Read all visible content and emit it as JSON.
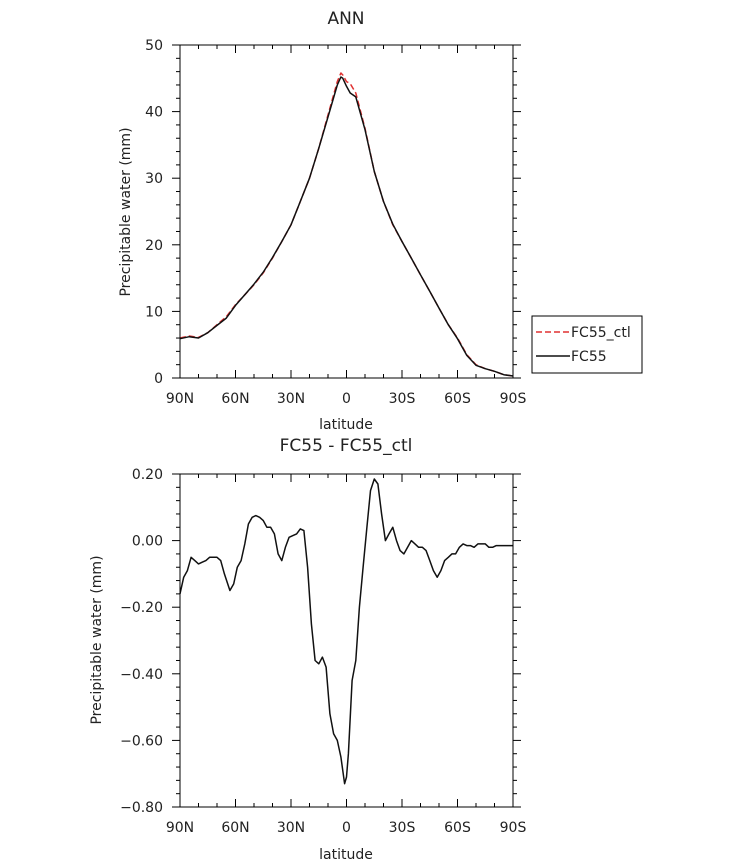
{
  "chart_data": [
    {
      "type": "line",
      "title": "ANN",
      "xlabel": "latitude",
      "ylabel": "Precipitable water  (mm)",
      "xlim": [
        90,
        -90
      ],
      "ylim": [
        0,
        50
      ],
      "x_ticks": [
        90,
        60,
        30,
        0,
        -30,
        -60,
        -90
      ],
      "x_tick_labels": [
        "90N",
        "60N",
        "30N",
        "0",
        "30S",
        "60S",
        "90S"
      ],
      "y_ticks": [
        0,
        10,
        20,
        30,
        40,
        50
      ],
      "y_tick_labels": [
        "0",
        "10",
        "20",
        "30",
        "40",
        "50"
      ],
      "legend": {
        "position": "right",
        "entries": [
          "FC55_ctl",
          "FC55"
        ]
      },
      "series": [
        {
          "name": "FC55_ctl",
          "color": "#e03030",
          "dash": true,
          "x": [
            90,
            85,
            80,
            75,
            70,
            65,
            60,
            55,
            50,
            45,
            40,
            35,
            30,
            25,
            20,
            15,
            10,
            5,
            3,
            2,
            0,
            -2,
            -5,
            -10,
            -15,
            -20,
            -25,
            -30,
            -35,
            -40,
            -45,
            -50,
            -55,
            -60,
            -65,
            -70,
            -75,
            -80,
            -85,
            -90
          ],
          "y": [
            6.0,
            6.3,
            6.1,
            6.8,
            8.0,
            9.2,
            11.0,
            12.5,
            14.0,
            15.8,
            18.0,
            20.5,
            23.0,
            26.5,
            30.0,
            34.5,
            39.5,
            44.5,
            45.8,
            45.5,
            44.5,
            44.2,
            42.8,
            37.5,
            31.0,
            26.5,
            23.0,
            20.5,
            18.0,
            15.5,
            13.0,
            10.5,
            8.0,
            6.0,
            3.5,
            2.0,
            1.4,
            1.0,
            0.5,
            0.3
          ]
        },
        {
          "name": "FC55",
          "color": "#111111",
          "dash": false,
          "x": [
            90,
            85,
            80,
            75,
            70,
            65,
            60,
            55,
            50,
            45,
            40,
            35,
            30,
            25,
            20,
            15,
            10,
            5,
            3,
            2,
            0,
            -2,
            -5,
            -10,
            -15,
            -20,
            -25,
            -30,
            -35,
            -40,
            -45,
            -50,
            -55,
            -60,
            -65,
            -70,
            -75,
            -80,
            -85,
            -90
          ],
          "y": [
            5.9,
            6.2,
            6.0,
            6.8,
            7.9,
            9.0,
            10.9,
            12.5,
            14.1,
            15.9,
            18.1,
            20.5,
            23.0,
            26.5,
            30.0,
            34.5,
            39.2,
            44.0,
            45.2,
            45.0,
            43.8,
            42.8,
            42.2,
            37.3,
            31.0,
            26.5,
            23.1,
            20.5,
            18.0,
            15.5,
            13.0,
            10.5,
            8.0,
            5.9,
            3.4,
            1.9,
            1.4,
            1.0,
            0.5,
            0.3
          ]
        }
      ]
    },
    {
      "type": "line",
      "title": "FC55 - FC55_ctl",
      "xlabel": "latitude",
      "ylabel": "Precipitable water  (mm)",
      "xlim": [
        90,
        -90
      ],
      "ylim": [
        -0.8,
        0.2
      ],
      "x_ticks": [
        90,
        60,
        30,
        0,
        -30,
        -60,
        -90
      ],
      "x_tick_labels": [
        "90N",
        "60N",
        "30N",
        "0",
        "30S",
        "60S",
        "90S"
      ],
      "y_ticks": [
        -0.8,
        -0.6,
        -0.4,
        -0.2,
        0.0,
        0.2
      ],
      "y_tick_labels": [
        "−0.80",
        "−0.60",
        "−0.40",
        "−0.20",
        "0.00",
        "0.20"
      ],
      "series": [
        {
          "color": "#111111",
          "x": [
            90,
            88,
            86,
            84,
            82,
            80,
            78,
            76,
            74,
            72,
            70,
            68,
            66,
            63,
            61,
            59,
            57,
            55,
            53,
            51,
            49,
            47,
            45,
            43,
            41,
            39,
            37,
            35,
            33,
            31,
            29,
            27,
            25,
            23,
            21,
            19,
            17,
            15,
            13,
            11,
            9,
            7,
            5,
            3,
            1,
            0,
            -1,
            -3,
            -5,
            -7,
            -9,
            -11,
            -13,
            -15,
            -17,
            -19,
            -21,
            -23,
            -25,
            -27,
            -29,
            -31,
            -33,
            -35,
            -37,
            -39,
            -41,
            -43,
            -45,
            -47,
            -49,
            -51,
            -53,
            -55,
            -57,
            -59,
            -61,
            -63,
            -65,
            -67,
            -69,
            -71,
            -73,
            -75,
            -77,
            -79,
            -81,
            -83,
            -85,
            -87,
            -89,
            -90
          ],
          "y": [
            -0.16,
            -0.11,
            -0.09,
            -0.05,
            -0.06,
            -0.07,
            -0.065,
            -0.06,
            -0.05,
            -0.05,
            -0.05,
            -0.06,
            -0.1,
            -0.15,
            -0.13,
            -0.08,
            -0.06,
            -0.01,
            0.05,
            0.07,
            0.075,
            0.07,
            0.06,
            0.04,
            0.04,
            0.02,
            -0.04,
            -0.06,
            -0.02,
            0.01,
            0.015,
            0.02,
            0.035,
            0.03,
            -0.08,
            -0.25,
            -0.36,
            -0.37,
            -0.35,
            -0.38,
            -0.52,
            -0.58,
            -0.6,
            -0.65,
            -0.73,
            -0.71,
            -0.64,
            -0.42,
            -0.36,
            -0.2,
            -0.08,
            0.04,
            0.15,
            0.185,
            0.17,
            0.08,
            0.0,
            0.02,
            0.04,
            0.0,
            -0.03,
            -0.04,
            -0.02,
            0.0,
            -0.01,
            -0.02,
            -0.02,
            -0.03,
            -0.06,
            -0.09,
            -0.11,
            -0.09,
            -0.06,
            -0.05,
            -0.04,
            -0.04,
            -0.02,
            -0.01,
            -0.015,
            -0.015,
            -0.02,
            -0.01,
            -0.01,
            -0.01,
            -0.02,
            -0.02,
            -0.015,
            -0.015,
            -0.015,
            -0.015,
            -0.015,
            -0.015
          ]
        }
      ]
    }
  ]
}
